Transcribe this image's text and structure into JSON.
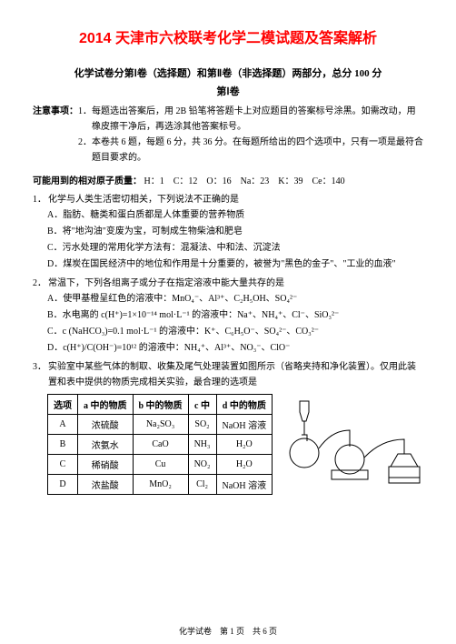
{
  "title": "2014 天津市六校联考化学二模试题及答案解析",
  "subtitle": "化学试卷分第Ⅰ卷（选择题）和第Ⅱ卷（非选择题）两部分，总分 100 分",
  "part": "第Ⅰ卷",
  "notice_label": "注意事项：",
  "notice1_num": "1．",
  "notice1": "每题选出答案后，用 2B 铅笔将答题卡上对应题目的答案标号涂黑。如需改动，用橡皮擦干净后，再选涂其他答案标号。",
  "notice2_num": "2．",
  "notice2": "本卷共 6 题，每题 6 分，共 36 分。在每题所给出的四个选项中，只有一项是最符合题目要求的。",
  "mass_label": "可能用到的相对原子质量：",
  "mass_values": "H：1　C：12　O：16　Na：23　K：39　Ce：140",
  "q1_num": "1．",
  "q1_stem": "化学与人类生活密切相关，下列说法不正确的是",
  "q1_a": "A．脂肪、糖类和蛋白质都是人体重要的营养物质",
  "q1_b": "B．将\"地沟油\"变废为宝，可制成生物柴油和肥皂",
  "q1_c": "C．污水处理的常用化学方法有：混凝法、中和法、沉淀法",
  "q1_d": "D．煤炭在国民经济中的地位和作用是十分重要的，被誉为\"黑色的金子\"、\"工业的血液\"",
  "q2_num": "2．",
  "q2_stem": "常温下，下列各组离子或分子在指定溶液中能大量共存的是",
  "q2_a": "A．使甲基橙呈红色的溶液中：MnO₄⁻、Al³⁺、C₂H₅OH、SO₄²⁻",
  "q2_b": "B．水电离的 c(H⁺)=1×10⁻¹⁴ mol·L⁻¹ 的溶液中：Na⁺、NH₄⁺、Cl⁻、SiO₃²⁻",
  "q2_c": "C．c (NaHCO₃)=0.1 mol·L⁻¹ 的溶液中：K⁺、C₆H₅O⁻、SO₄²⁻、CO₃²⁻",
  "q2_d": "D．c(H⁺)/C(OH⁻)=10¹² 的溶液中：NH₄⁺、Al³⁺、NO₃⁻、ClO⁻",
  "q3_num": "3．",
  "q3_stem": "实验室中某些气体的制取、收集及尾气处理装置如图所示（省略夹持和净化装置）。仅用此装置和表中提供的物质完成相关实验，最合理的选项是",
  "table": {
    "headers": [
      "选项",
      "a 中的物质",
      "b 中的物质",
      "c 中",
      "d 中的物质"
    ],
    "rows": [
      [
        "A",
        "浓硫酸",
        "Na₂SO₃",
        "SO₂",
        "NaOH 溶液"
      ],
      [
        "B",
        "浓氨水",
        "CaO",
        "NH₃",
        "H₂O"
      ],
      [
        "C",
        "稀硝酸",
        "Cu",
        "NO₂",
        "H₂O"
      ],
      [
        "D",
        "浓盐酸",
        "MnO₂",
        "Cl₂",
        "NaOH 溶液"
      ]
    ]
  },
  "footer": "化学试卷　第 1 页　共 6 页"
}
